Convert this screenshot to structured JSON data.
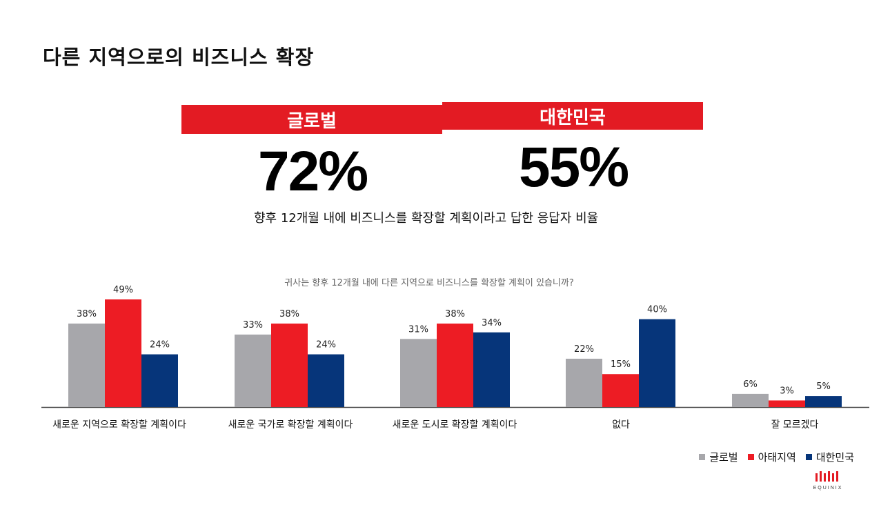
{
  "title": "다른 지역으로의 비즈니스 확장",
  "kpis": {
    "global": {
      "label": "글로벌",
      "value": "72%"
    },
    "korea": {
      "label": "대한민국",
      "value": "55%"
    },
    "caption": "향후 12개월 내에 비즈니스를 확장할 계획이라고 답한 응답자 비율"
  },
  "colors": {
    "accent_red": "#e31b23",
    "global_gray": "#a7a7ab",
    "apac_red": "#ed1c24",
    "korea_blue": "#06357a"
  },
  "legend": [
    {
      "name": "글로벌",
      "color": "#a7a7ab"
    },
    {
      "name": "아태지역",
      "color": "#ed1c24"
    },
    {
      "name": "대한민국",
      "color": "#06357a"
    }
  ],
  "logo_text": "EQUINIX",
  "chart_data": {
    "type": "bar",
    "title": "귀사는 향후 12개월 내에 다른 지역으로 비즈니스를 확장할 계획이 있습니까?",
    "categories": [
      "새로운 지역으로 확장할 계획이다",
      "새로운 국가로 확장할 계획이다",
      "새로운 도시로 확장할 계획이다",
      "없다",
      "잘 모르겠다"
    ],
    "series": [
      {
        "name": "글로벌",
        "color": "#a7a7ab",
        "values": [
          38,
          33,
          31,
          22,
          6
        ],
        "labels": [
          "38%",
          "33%",
          "31%",
          "22%",
          "6%"
        ]
      },
      {
        "name": "아태지역",
        "color": "#ed1c24",
        "values": [
          49,
          38,
          38,
          15,
          3
        ],
        "labels": [
          "49%",
          "38%",
          "38%",
          "15%",
          "3%"
        ]
      },
      {
        "name": "대한민국",
        "color": "#06357a",
        "values": [
          24,
          24,
          34,
          40,
          5
        ],
        "labels": [
          "24%",
          "24%",
          "34%",
          "40%",
          "5%"
        ]
      }
    ],
    "ylim": [
      0,
      49
    ],
    "grid": false,
    "legend_position": "bottom-right",
    "xlabel": "",
    "ylabel": ""
  }
}
